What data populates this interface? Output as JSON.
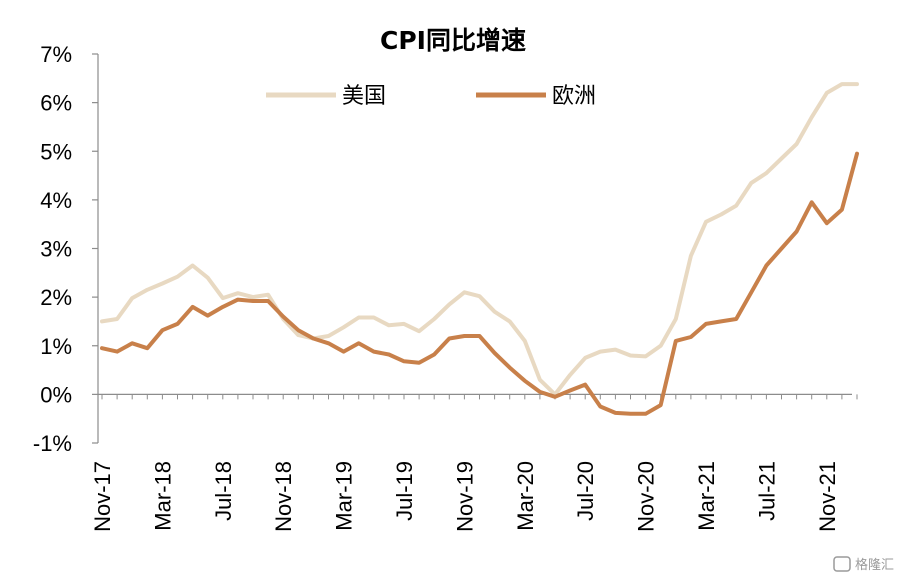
{
  "chart_data": {
    "type": "line",
    "title": "CPI同比增速",
    "xlabel": "",
    "ylabel": "",
    "ylim": [
      -1,
      7
    ],
    "yticks": [
      "-1%",
      "0%",
      "1%",
      "2%",
      "3%",
      "4%",
      "5%",
      "6%",
      "7%"
    ],
    "xticks": [
      "Nov-17",
      "Mar-18",
      "Jul-18",
      "Nov-18",
      "Mar-19",
      "Jul-19",
      "Nov-19",
      "Mar-20",
      "Jul-20",
      "Nov-20",
      "Mar-21",
      "Jul-21",
      "Nov-21"
    ],
    "x": [
      "Nov-17",
      "Dec-17",
      "Jan-18",
      "Feb-18",
      "Mar-18",
      "Apr-18",
      "May-18",
      "Jun-18",
      "Jul-18",
      "Aug-18",
      "Sep-18",
      "Oct-18",
      "Nov-18",
      "Dec-18",
      "Jan-19",
      "Feb-19",
      "Mar-19",
      "Apr-19",
      "May-19",
      "Jun-19",
      "Jul-19",
      "Aug-19",
      "Sep-19",
      "Oct-19",
      "Nov-19",
      "Dec-19",
      "Jan-20",
      "Feb-20",
      "Mar-20",
      "Apr-20",
      "May-20",
      "Jun-20",
      "Jul-20",
      "Aug-20",
      "Sep-20",
      "Oct-20",
      "Nov-20",
      "Dec-20",
      "Jan-21",
      "Feb-21",
      "Mar-21",
      "Apr-21",
      "May-21",
      "Jun-21",
      "Jul-21",
      "Aug-21",
      "Sep-21",
      "Oct-21",
      "Nov-21",
      "Dec-21",
      "Jan-22"
    ],
    "legend_position": "top",
    "series": [
      {
        "name": "美国",
        "color": "#e8d9c2",
        "values": [
          1.5,
          1.55,
          1.98,
          2.15,
          2.28,
          2.42,
          2.65,
          2.4,
          1.98,
          2.08,
          2.0,
          2.05,
          1.55,
          1.22,
          1.15,
          1.2,
          1.38,
          1.58,
          1.58,
          1.42,
          1.45,
          1.3,
          1.55,
          1.85,
          2.1,
          2.02,
          1.7,
          1.5,
          1.1,
          0.3,
          0.0,
          0.4,
          0.75,
          0.88,
          0.92,
          0.8,
          0.78,
          1.0,
          1.55,
          2.85,
          3.55,
          3.7,
          3.88,
          4.35,
          4.55,
          4.85,
          5.15,
          5.7,
          6.2,
          6.38,
          6.38
        ]
      },
      {
        "name": "欧洲",
        "color": "#c8804a",
        "values": [
          0.95,
          0.88,
          1.05,
          0.95,
          1.32,
          1.45,
          1.8,
          1.62,
          1.8,
          1.95,
          1.92,
          1.92,
          1.6,
          1.32,
          1.15,
          1.05,
          0.88,
          1.05,
          0.88,
          0.82,
          0.68,
          0.65,
          0.82,
          1.15,
          1.2,
          1.2,
          0.85,
          0.55,
          0.28,
          0.05,
          -0.05,
          0.08,
          0.2,
          -0.25,
          -0.38,
          -0.4,
          -0.4,
          -0.22,
          1.1,
          1.18,
          1.45,
          1.5,
          1.55,
          2.1,
          2.65,
          3.0,
          3.35,
          3.95,
          3.52,
          3.8,
          4.95
        ]
      }
    ]
  },
  "watermark": {
    "text": "格隆汇",
    "color": "#9a9a9a"
  }
}
